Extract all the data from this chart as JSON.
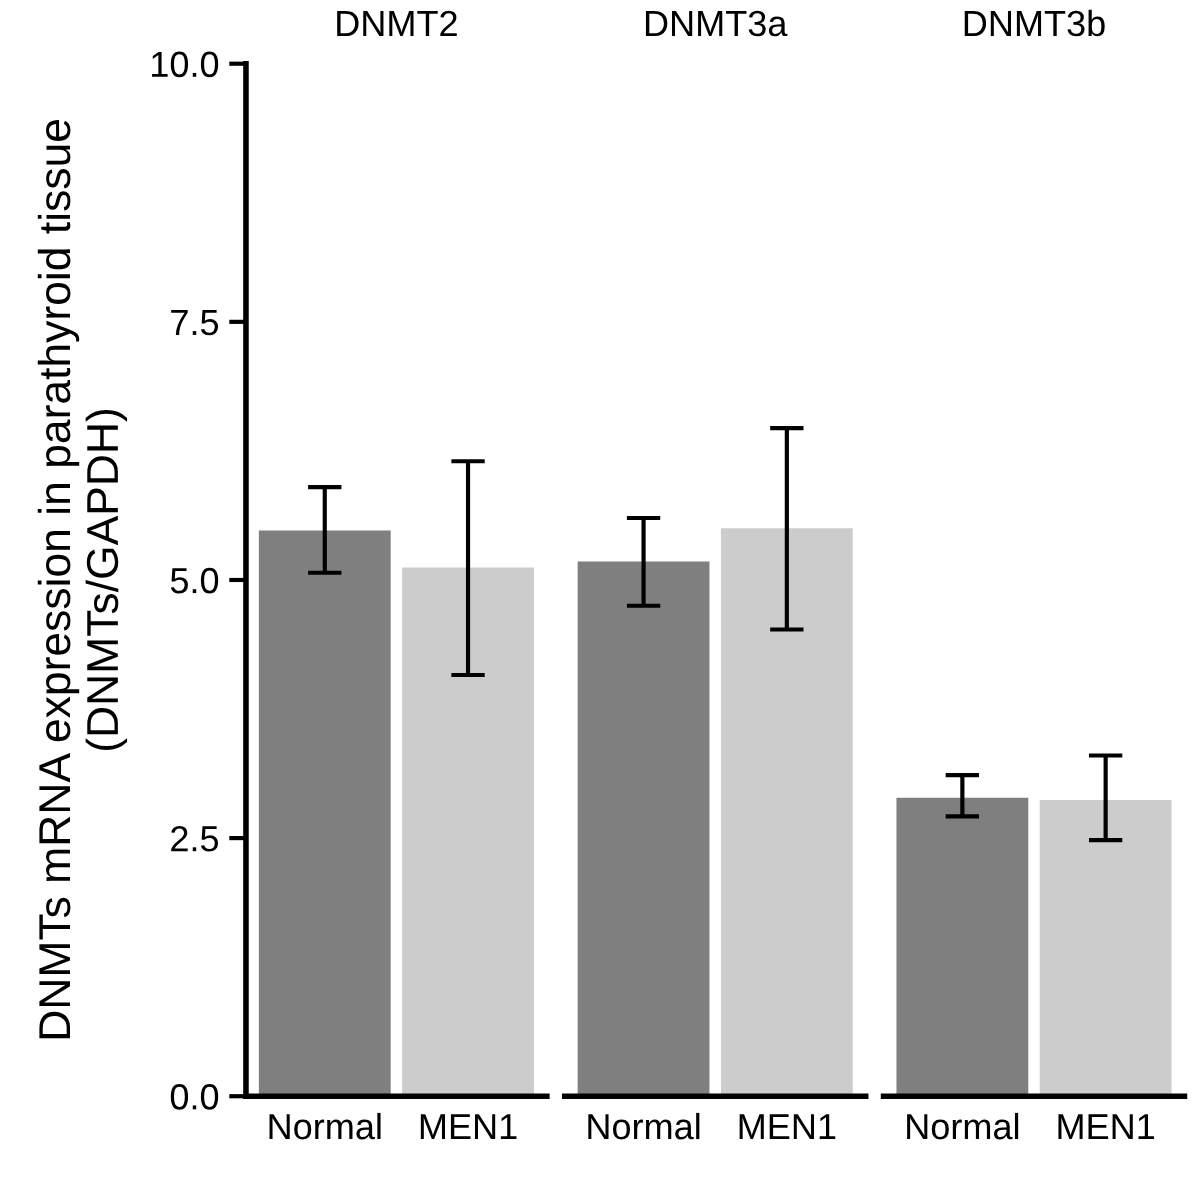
{
  "chart_data": [
    {
      "type": "bar",
      "title": "DNMT2",
      "ylabel": "DNMTs mRNA expression in parathyroid tissue\n(DNMTs/GAPDH)",
      "categories": [
        "Normal",
        "MEN1"
      ],
      "values": [
        5.48,
        5.12
      ],
      "colors": [
        "#7f7f7f",
        "#cccccc"
      ],
      "errors": [
        [
          5.07,
          5.9
        ],
        [
          4.08,
          6.15
        ]
      ],
      "ylim": [
        0,
        10
      ],
      "yticks": [
        {
          "value": 0,
          "label": "0.0"
        },
        {
          "value": 2.5,
          "label": "2.5"
        },
        {
          "value": 5,
          "label": "5.0"
        },
        {
          "value": 7.5,
          "label": "7.5"
        },
        {
          "value": 10,
          "label": "10.0"
        }
      ]
    },
    {
      "type": "bar",
      "title": "DNMT3a",
      "categories": [
        "Normal",
        "MEN1"
      ],
      "values": [
        5.18,
        5.5
      ],
      "colors": [
        "#7f7f7f",
        "#cccccc"
      ],
      "errors": [
        [
          4.75,
          5.6
        ],
        [
          4.52,
          6.47
        ]
      ],
      "ylim": [
        0,
        10
      ],
      "tick_labels": "x"
    },
    {
      "type": "bar",
      "title": "DNMT3b",
      "categories": [
        "Normal",
        "MEN1"
      ],
      "values": [
        2.89,
        2.87
      ],
      "colors": [
        "#7f7f7f",
        "#cccccc"
      ],
      "errors": [
        [
          2.71,
          3.11
        ],
        [
          2.48,
          3.3
        ]
      ],
      "ylim": [
        0,
        10
      ],
      "tick_labels": "x"
    }
  ]
}
